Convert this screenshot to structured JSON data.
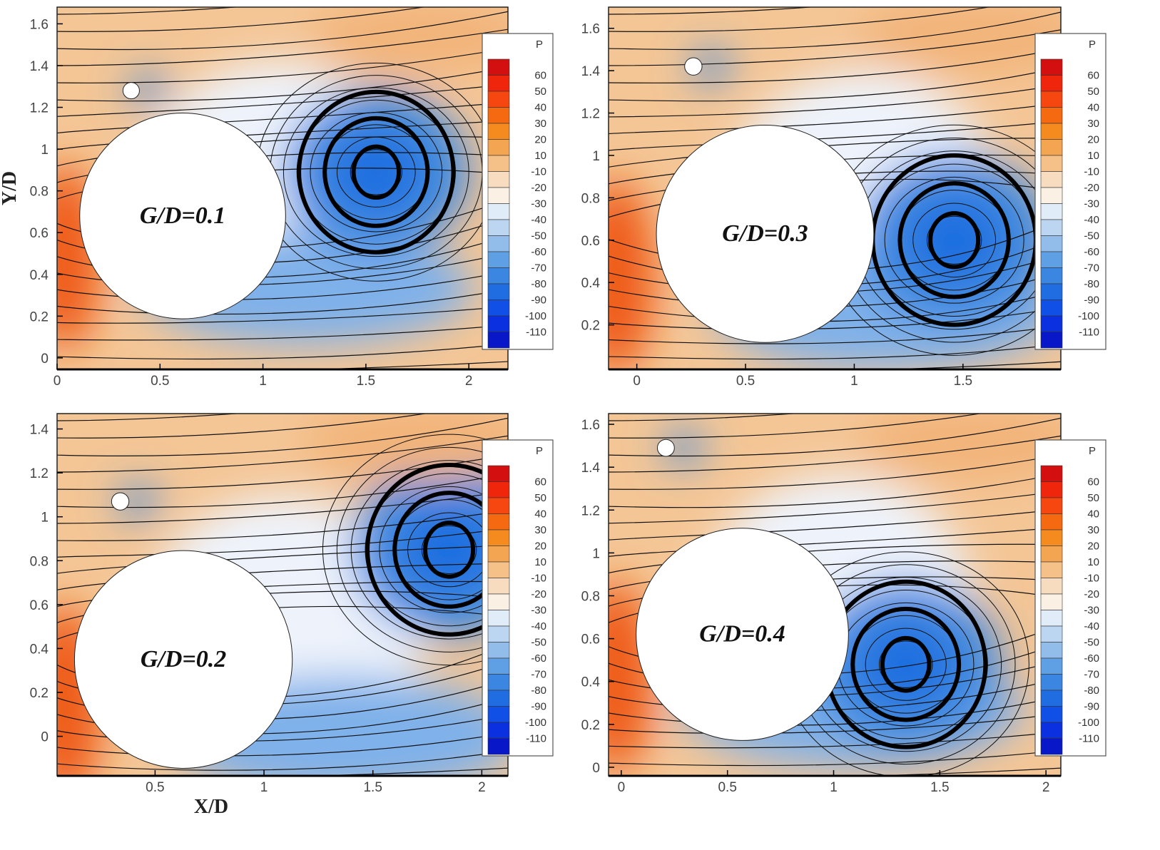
{
  "chart_data": [
    {
      "type": "heatmap",
      "title": "G/D=0.1",
      "xlabel": "",
      "ylabel": "Y/D",
      "xlim": [
        0,
        2.19
      ],
      "ylim": [
        -0.055,
        1.68
      ],
      "xticks": [
        "0",
        "0.5",
        "1",
        "1.5",
        "2"
      ],
      "yticks": [
        "0",
        "0.2",
        "0.4",
        "0.6",
        "0.8",
        "1",
        "1.2",
        "1.4",
        "1.6"
      ],
      "main_cylinder": {
        "x": 0.61,
        "y": 0.68,
        "r": 0.5
      },
      "small_cylinder": {
        "x": 0.36,
        "y": 1.28,
        "r": 0.04
      },
      "vortex_center": {
        "x": 1.55,
        "y": 0.89
      }
    },
    {
      "type": "heatmap",
      "title": "G/D=0.3",
      "xlabel": "",
      "ylabel": "",
      "xlim": [
        -0.13,
        1.95
      ],
      "ylim": [
        -0.01,
        1.7
      ],
      "xticks": [
        "0",
        "0.5",
        "1",
        "1.5"
      ],
      "yticks": [
        "0.2",
        "0.4",
        "0.6",
        "0.8",
        "1",
        "1.2",
        "1.4",
        "1.6"
      ],
      "main_cylinder": {
        "x": 0.59,
        "y": 0.63,
        "r": 0.5
      },
      "small_cylinder": {
        "x": 0.26,
        "y": 1.42,
        "r": 0.04
      },
      "vortex_center": {
        "x": 1.46,
        "y": 0.6
      }
    },
    {
      "type": "heatmap",
      "title": "G/D=0.2",
      "xlabel": "X/D",
      "ylabel": "",
      "xlim": [
        0.05,
        2.12
      ],
      "ylim": [
        -0.18,
        1.47
      ],
      "xticks": [
        "0.5",
        "1",
        "1.5",
        "2"
      ],
      "yticks": [
        "0",
        "0.2",
        "0.4",
        "0.6",
        "0.8",
        "1",
        "1.2",
        "1.4"
      ],
      "main_cylinder": {
        "x": 0.63,
        "y": 0.35,
        "r": 0.5
      },
      "small_cylinder": {
        "x": 0.34,
        "y": 1.07,
        "r": 0.04
      },
      "vortex_center": {
        "x": 1.85,
        "y": 0.85
      }
    },
    {
      "type": "heatmap",
      "title": "G/D=0.4",
      "xlabel": "",
      "ylabel": "",
      "xlim": [
        -0.06,
        2.07
      ],
      "ylim": [
        -0.04,
        1.65
      ],
      "xticks": [
        "0",
        "0.5",
        "1",
        "1.5",
        "2"
      ],
      "yticks": [
        "0",
        "0.2",
        "0.4",
        "0.6",
        "0.8",
        "1",
        "1.2",
        "1.4",
        "1.6"
      ],
      "main_cylinder": {
        "x": 0.57,
        "y": 0.62,
        "r": 0.5
      },
      "small_cylinder": {
        "x": 0.21,
        "y": 1.49,
        "r": 0.04
      },
      "vortex_center": {
        "x": 1.34,
        "y": 0.48
      }
    }
  ],
  "colorbar": {
    "title": "P",
    "levels": [
      "60",
      "50",
      "40",
      "30",
      "20",
      "10",
      "-10",
      "-20",
      "-30",
      "-40",
      "-50",
      "-60",
      "-70",
      "-80",
      "-90",
      "-100",
      "-110"
    ],
    "colors": [
      "#d40f0f",
      "#f0260c",
      "#f5470f",
      "#f56a10",
      "#f58a1e",
      "#f4a552",
      "#f6c089",
      "#f7dcc0",
      "#fbf0e4",
      "#e0ecf8",
      "#bcd6f2",
      "#92bdeb",
      "#5f9fe4",
      "#3a86e0",
      "#1f6de0",
      "#1150e6",
      "#0a30e0",
      "#0818c8"
    ]
  }
}
